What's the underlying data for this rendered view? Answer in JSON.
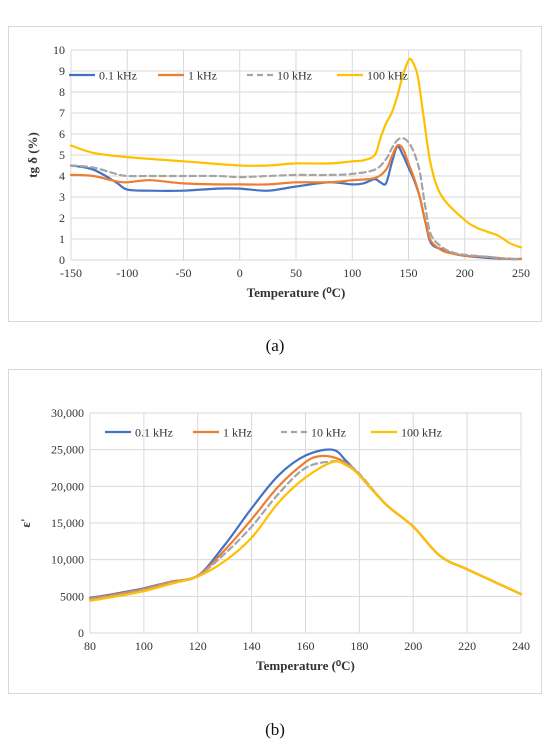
{
  "captions": {
    "a": "(a)",
    "b": "(b)"
  },
  "chart_data": [
    {
      "type": "line",
      "xlabel": "Temperature (⁰C)",
      "ylabel": "tg δ (%)",
      "xlim": [
        -150,
        250
      ],
      "ylim": [
        0,
        10
      ],
      "xticks": [
        -150,
        -100,
        -50,
        0,
        50,
        100,
        150,
        200,
        250
      ],
      "yticks": [
        0,
        1,
        2,
        3,
        4,
        5,
        6,
        7,
        8,
        9,
        10
      ],
      "xtick_labels": [
        "-150",
        "-100",
        "-50",
        "0",
        "50",
        "100",
        "150",
        "200",
        "250"
      ],
      "ytick_labels": [
        "0",
        "1",
        "2",
        "3",
        "4",
        "5",
        "6",
        "7",
        "8",
        "9",
        "10"
      ],
      "grid": true,
      "legend_position": "top",
      "series": [
        {
          "name": "0.1 kHz",
          "color": "#4472c4",
          "dash": "solid",
          "x": [
            -150,
            -130,
            -110,
            -100,
            -80,
            -50,
            -20,
            0,
            25,
            50,
            80,
            100,
            110,
            120,
            125,
            130,
            135,
            140,
            145,
            150,
            155,
            160,
            165,
            170,
            180,
            190,
            200,
            220,
            240,
            250
          ],
          "y": [
            4.5,
            4.3,
            3.7,
            3.35,
            3.3,
            3.3,
            3.4,
            3.4,
            3.3,
            3.5,
            3.7,
            3.6,
            3.65,
            3.85,
            3.7,
            3.65,
            4.6,
            5.4,
            5.0,
            4.4,
            3.8,
            3.0,
            1.8,
            0.8,
            0.5,
            0.3,
            0.2,
            0.1,
            0.05,
            0.05
          ]
        },
        {
          "name": "1 kHz",
          "color": "#ed7d31",
          "dash": "solid",
          "x": [
            -150,
            -130,
            -110,
            -100,
            -80,
            -50,
            -20,
            0,
            25,
            50,
            80,
            100,
            120,
            130,
            135,
            140,
            145,
            150,
            155,
            160,
            165,
            170,
            180,
            190,
            200,
            220,
            240,
            250
          ],
          "y": [
            4.05,
            4.0,
            3.75,
            3.7,
            3.8,
            3.65,
            3.6,
            3.6,
            3.6,
            3.7,
            3.7,
            3.8,
            3.9,
            4.3,
            4.9,
            5.45,
            5.3,
            4.6,
            3.9,
            3.0,
            1.8,
            0.9,
            0.45,
            0.3,
            0.2,
            0.15,
            0.05,
            0.05
          ]
        },
        {
          "name": "10 kHz",
          "color": "#a5a5a5",
          "dash": "6,4",
          "x": [
            -150,
            -130,
            -110,
            -100,
            -80,
            -50,
            -20,
            0,
            25,
            50,
            80,
            100,
            120,
            130,
            135,
            140,
            145,
            150,
            155,
            160,
            165,
            170,
            180,
            190,
            200,
            220,
            240,
            250
          ],
          "y": [
            4.5,
            4.4,
            4.1,
            4.0,
            4.0,
            4.0,
            4.0,
            3.95,
            4.0,
            4.05,
            4.05,
            4.1,
            4.3,
            4.8,
            5.3,
            5.7,
            5.8,
            5.6,
            5.1,
            4.2,
            2.5,
            1.2,
            0.6,
            0.35,
            0.25,
            0.15,
            0.05,
            0.05
          ]
        },
        {
          "name": "100 kHz",
          "color": "#ffc000",
          "dash": "solid",
          "x": [
            -150,
            -130,
            -100,
            -50,
            0,
            25,
            50,
            80,
            100,
            110,
            120,
            125,
            130,
            135,
            140,
            145,
            150,
            153,
            158,
            163,
            170,
            180,
            200,
            210,
            220,
            230,
            240,
            250
          ],
          "y": [
            5.45,
            5.1,
            4.9,
            4.7,
            4.5,
            4.5,
            4.6,
            4.6,
            4.7,
            4.75,
            5.0,
            5.8,
            6.5,
            7.0,
            7.8,
            8.8,
            9.5,
            9.5,
            8.8,
            7.0,
            4.5,
            3.0,
            1.9,
            1.55,
            1.35,
            1.15,
            0.8,
            0.6
          ]
        }
      ]
    },
    {
      "type": "line",
      "xlabel": "Temperature (⁰C)",
      "ylabel": "ε'",
      "xlim": [
        80,
        240
      ],
      "ylim": [
        0,
        30000
      ],
      "xticks": [
        80,
        100,
        120,
        140,
        160,
        180,
        200,
        220,
        240
      ],
      "yticks": [
        0,
        5000,
        10000,
        15000,
        20000,
        25000,
        30000
      ],
      "xtick_labels": [
        "80",
        "100",
        "120",
        "140",
        "160",
        "180",
        "200",
        "220",
        "240"
      ],
      "ytick_labels": [
        "0",
        "5000",
        "10,000",
        "15,000",
        "20,000",
        "25,000",
        "30,000"
      ],
      "grid": true,
      "legend_position": "top",
      "series": [
        {
          "name": "0.1 kHz",
          "color": "#4472c4",
          "dash": "solid",
          "x": [
            80,
            90,
            100,
            110,
            120,
            130,
            140,
            150,
            160,
            170,
            175,
            180,
            190,
            200,
            210,
            220,
            230,
            240
          ],
          "y": [
            4800,
            5400,
            6100,
            7000,
            7800,
            12000,
            17000,
            21500,
            24200,
            25000,
            23500,
            21500,
            17500,
            14500,
            10500,
            8700,
            7000,
            5300
          ]
        },
        {
          "name": "1 kHz",
          "color": "#ed7d31",
          "dash": "solid",
          "x": [
            80,
            90,
            100,
            110,
            120,
            130,
            140,
            150,
            160,
            165,
            170,
            175,
            180,
            190,
            200,
            210,
            220,
            230,
            240
          ],
          "y": [
            4700,
            5300,
            6000,
            7000,
            7800,
            11300,
            15500,
            20000,
            23300,
            24100,
            24000,
            23200,
            21600,
            17500,
            14500,
            10500,
            8700,
            7000,
            5300
          ]
        },
        {
          "name": "10 kHz",
          "color": "#a5a5a5",
          "dash": "6,4",
          "x": [
            80,
            90,
            100,
            110,
            120,
            130,
            140,
            150,
            160,
            170,
            175,
            180,
            190,
            200,
            210,
            220,
            230,
            240
          ],
          "y": [
            4600,
            5200,
            5900,
            6900,
            7800,
            10800,
            14500,
            19000,
            22500,
            23400,
            23100,
            21700,
            17500,
            14500,
            10500,
            8700,
            7000,
            5300
          ]
        },
        {
          "name": "100 kHz",
          "color": "#ffc000",
          "dash": "solid",
          "x": [
            80,
            90,
            100,
            110,
            120,
            130,
            140,
            150,
            160,
            170,
            175,
            180,
            190,
            200,
            210,
            220,
            230,
            240
          ],
          "y": [
            4400,
            5000,
            5700,
            6700,
            7700,
            9800,
            13000,
            17800,
            21200,
            23300,
            22900,
            21500,
            17500,
            14500,
            10500,
            8700,
            7000,
            5300
          ]
        }
      ]
    }
  ]
}
